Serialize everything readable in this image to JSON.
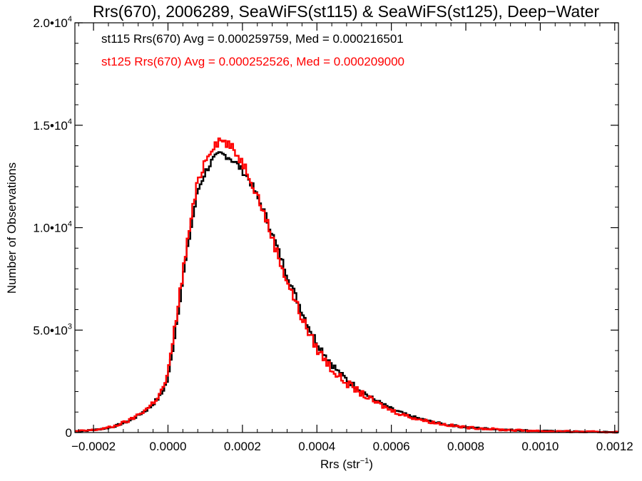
{
  "chart_data": {
    "type": "histogram-step",
    "title": "Rrs(670), 2006289, SeaWiFS(st115) & SeaWiFS(st125), Deep−Water",
    "xlabel": "Rrs (str",
    "xlabel_sup": "−1",
    "xlabel_suffix": ")",
    "ylabel": "Number of Observations",
    "xlim": [
      -0.00025,
      0.00121
    ],
    "ylim": [
      0,
      20000
    ],
    "x_ticks": [
      -0.0002,
      0.0,
      0.0002,
      0.0004,
      0.0006,
      0.0008,
      0.001,
      0.0012
    ],
    "x_tick_labels": [
      "−0.0002",
      "0.0000",
      "0.0002",
      "0.0004",
      "0.0006",
      "0.0008",
      "0.0010",
      "0.0012"
    ],
    "y_ticks": [
      0,
      5000,
      10000,
      15000,
      20000
    ],
    "y_tick_labels": [
      {
        "base": "0",
        "exp": ""
      },
      {
        "base": "5.0•10",
        "exp": "3"
      },
      {
        "base": "1.0•10",
        "exp": "4"
      },
      {
        "base": "1.5•10",
        "exp": "4"
      },
      {
        "base": "2.0•10",
        "exp": "4"
      }
    ],
    "bin_width": 5e-06,
    "series": [
      {
        "name": "st115",
        "color": "#000000",
        "legend": "st115 Rrs(670) Avg = 0.000259759, Med = 0.000216501",
        "profile": [
          [
            -0.00025,
            60
          ],
          [
            -0.0002,
            120
          ],
          [
            -0.00015,
            260
          ],
          [
            -0.0001,
            600
          ],
          [
            -5e-05,
            1200
          ],
          [
            -2e-05,
            1800
          ],
          [
            0.0,
            2600
          ],
          [
            2e-05,
            5000
          ],
          [
            4e-05,
            7500
          ],
          [
            6e-05,
            9800
          ],
          [
            8e-05,
            11800
          ],
          [
            0.0001,
            12700
          ],
          [
            0.00012,
            13300
          ],
          [
            0.00014,
            13600
          ],
          [
            0.00016,
            13500
          ],
          [
            0.00018,
            13200
          ],
          [
            0.0002,
            12800
          ],
          [
            0.00022,
            12300
          ],
          [
            0.00024,
            11500
          ],
          [
            0.00026,
            10700
          ],
          [
            0.00028,
            9700
          ],
          [
            0.0003,
            8700
          ],
          [
            0.00032,
            7700
          ],
          [
            0.00034,
            6800
          ],
          [
            0.00036,
            5900
          ],
          [
            0.00038,
            5100
          ],
          [
            0.0004,
            4400
          ],
          [
            0.00043,
            3600
          ],
          [
            0.00046,
            2900
          ],
          [
            0.0005,
            2300
          ],
          [
            0.00055,
            1650
          ],
          [
            0.0006,
            1150
          ],
          [
            0.00065,
            800
          ],
          [
            0.0007,
            560
          ],
          [
            0.00075,
            380
          ],
          [
            0.0008,
            260
          ],
          [
            0.0009,
            140
          ],
          [
            0.001,
            80
          ],
          [
            0.0011,
            40
          ],
          [
            0.00121,
            20
          ]
        ]
      },
      {
        "name": "st125",
        "color": "#ff0000",
        "legend": "st125 Rrs(670) Avg = 0.000252526, Med = 0.000209000",
        "profile": [
          [
            -0.00025,
            60
          ],
          [
            -0.0002,
            120
          ],
          [
            -0.00015,
            270
          ],
          [
            -0.0001,
            620
          ],
          [
            -5e-05,
            1250
          ],
          [
            -2e-05,
            1900
          ],
          [
            0.0,
            2800
          ],
          [
            2e-05,
            5300
          ],
          [
            4e-05,
            7800
          ],
          [
            6e-05,
            10200
          ],
          [
            8e-05,
            12200
          ],
          [
            0.0001,
            13300
          ],
          [
            0.00012,
            14000
          ],
          [
            0.00014,
            14300
          ],
          [
            0.00016,
            14100
          ],
          [
            0.00018,
            13700
          ],
          [
            0.0002,
            13200
          ],
          [
            0.00022,
            12500
          ],
          [
            0.00024,
            11600
          ],
          [
            0.00026,
            10600
          ],
          [
            0.00028,
            9500
          ],
          [
            0.0003,
            8400
          ],
          [
            0.00032,
            7400
          ],
          [
            0.00034,
            6500
          ],
          [
            0.00036,
            5600
          ],
          [
            0.00038,
            4800
          ],
          [
            0.0004,
            4100
          ],
          [
            0.00043,
            3350
          ],
          [
            0.00046,
            2700
          ],
          [
            0.0005,
            2150
          ],
          [
            0.00055,
            1550
          ],
          [
            0.0006,
            1080
          ],
          [
            0.00065,
            760
          ],
          [
            0.0007,
            540
          ],
          [
            0.00075,
            370
          ],
          [
            0.0008,
            250
          ],
          [
            0.0009,
            135
          ],
          [
            0.001,
            75
          ],
          [
            0.0011,
            38
          ],
          [
            0.00121,
            18
          ]
        ],
        "jitter": 500
      }
    ],
    "grid": false,
    "legend_position": "top-left"
  }
}
